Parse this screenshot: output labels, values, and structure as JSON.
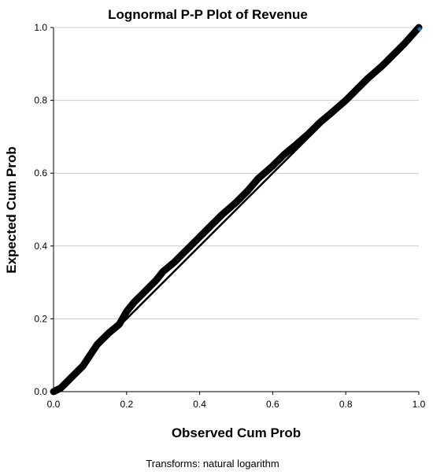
{
  "chart_data": {
    "type": "scatter",
    "title": "Lognormal P-P Plot of Revenue",
    "xlabel": "Observed Cum Prob",
    "ylabel": "Expected Cum Prob",
    "footnote": "Transforms: natural logarithm",
    "xlim": [
      0.0,
      1.0
    ],
    "ylim": [
      0.0,
      1.0
    ],
    "x_ticks": [
      "0.0",
      "0.2",
      "0.4",
      "0.6",
      "0.8",
      "1.0"
    ],
    "y_ticks": [
      "0.0",
      "0.2",
      "0.4",
      "0.6",
      "0.8",
      "1.0"
    ],
    "grid": "horizontal",
    "reference_line": {
      "from": [
        0.0,
        0.0
      ],
      "to": [
        1.0,
        1.0
      ]
    },
    "series": [
      {
        "x": [
          0.0,
          0.02,
          0.05,
          0.08,
          0.1,
          0.12,
          0.15,
          0.18,
          0.2,
          0.22,
          0.25,
          0.28,
          0.3,
          0.33,
          0.36,
          0.4,
          0.43,
          0.46,
          0.5,
          0.53,
          0.56,
          0.6,
          0.63,
          0.66,
          0.7,
          0.73,
          0.76,
          0.8,
          0.83,
          0.86,
          0.9,
          0.93,
          0.96,
          1.0
        ],
        "y": [
          0.0,
          0.01,
          0.04,
          0.07,
          0.1,
          0.13,
          0.16,
          0.185,
          0.22,
          0.245,
          0.275,
          0.305,
          0.33,
          0.355,
          0.385,
          0.425,
          0.455,
          0.485,
          0.52,
          0.55,
          0.585,
          0.62,
          0.65,
          0.675,
          0.71,
          0.74,
          0.765,
          0.8,
          0.83,
          0.86,
          0.895,
          0.925,
          0.955,
          1.0
        ]
      }
    ],
    "colors": {
      "points": "#000000",
      "reference_line": "#000000",
      "grid": "#c8c8c8",
      "highlight": "#1f77b4"
    }
  }
}
